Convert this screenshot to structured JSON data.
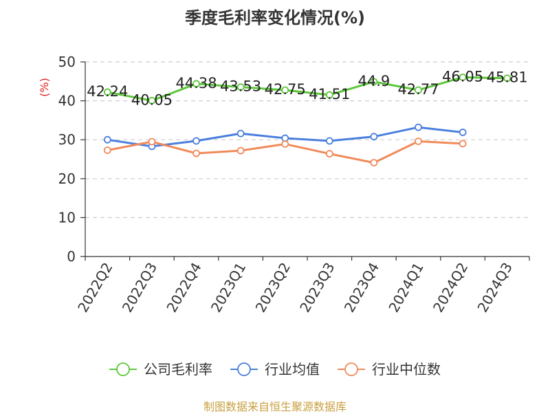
{
  "chart_data": {
    "type": "line",
    "title": "季度毛利率变化情况(%)",
    "ylabel": "(%)",
    "xlabel": "",
    "ylim": [
      0,
      50
    ],
    "yticks": [
      0,
      10,
      20,
      30,
      40,
      50
    ],
    "grid": true,
    "legend_position": "bottom",
    "categories": [
      "2022Q2",
      "2022Q3",
      "2022Q4",
      "2023Q1",
      "2023Q2",
      "2023Q3",
      "2023Q4",
      "2024Q1",
      "2024Q2",
      "2024Q3"
    ],
    "series": [
      {
        "name": "公司毛利率",
        "color": "#5cc73a",
        "show_labels": true,
        "values": [
          42.24,
          40.05,
          44.38,
          43.53,
          42.75,
          41.51,
          44.9,
          42.77,
          46.05,
          45.81
        ],
        "labels": [
          "42.24",
          "40.05",
          "44.38",
          "43.53",
          "42.75",
          "41.51",
          "44.9",
          "42.77",
          "46.05",
          "45.81"
        ]
      },
      {
        "name": "行业均值",
        "color": "#4a7ede",
        "show_labels": false,
        "values": [
          30.0,
          28.3,
          29.7,
          31.6,
          30.4,
          29.7,
          30.8,
          33.2,
          31.9,
          null
        ]
      },
      {
        "name": "行业中位数",
        "color": "#f08a5a",
        "show_labels": false,
        "values": [
          27.3,
          29.5,
          26.5,
          27.2,
          28.9,
          26.4,
          24.1,
          29.6,
          29.0,
          null
        ]
      }
    ]
  },
  "source_note": "制图数据来自恒生聚源数据库"
}
